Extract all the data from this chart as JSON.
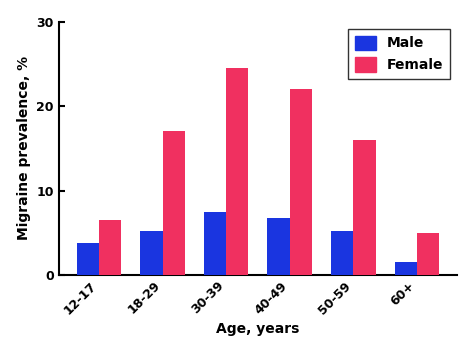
{
  "categories": [
    "12-17",
    "18-29",
    "30-39",
    "40-49",
    "50-59",
    "60+"
  ],
  "male_values": [
    3.8,
    5.2,
    7.5,
    6.7,
    5.2,
    1.5
  ],
  "female_values": [
    6.5,
    17.0,
    24.5,
    22.0,
    16.0,
    5.0
  ],
  "male_color": "#1a35e0",
  "female_color": "#f03060",
  "ylabel": "Migraine prevalence, %",
  "xlabel": "Age, years",
  "ylim": [
    0,
    30
  ],
  "yticks": [
    0,
    10,
    20,
    30
  ],
  "bar_width": 0.35,
  "legend_labels": [
    "Male",
    "Female"
  ],
  "label_fontsize": 10,
  "tick_fontsize": 9,
  "legend_fontsize": 10,
  "fig_width": 4.74,
  "fig_height": 3.53,
  "dpi": 100
}
